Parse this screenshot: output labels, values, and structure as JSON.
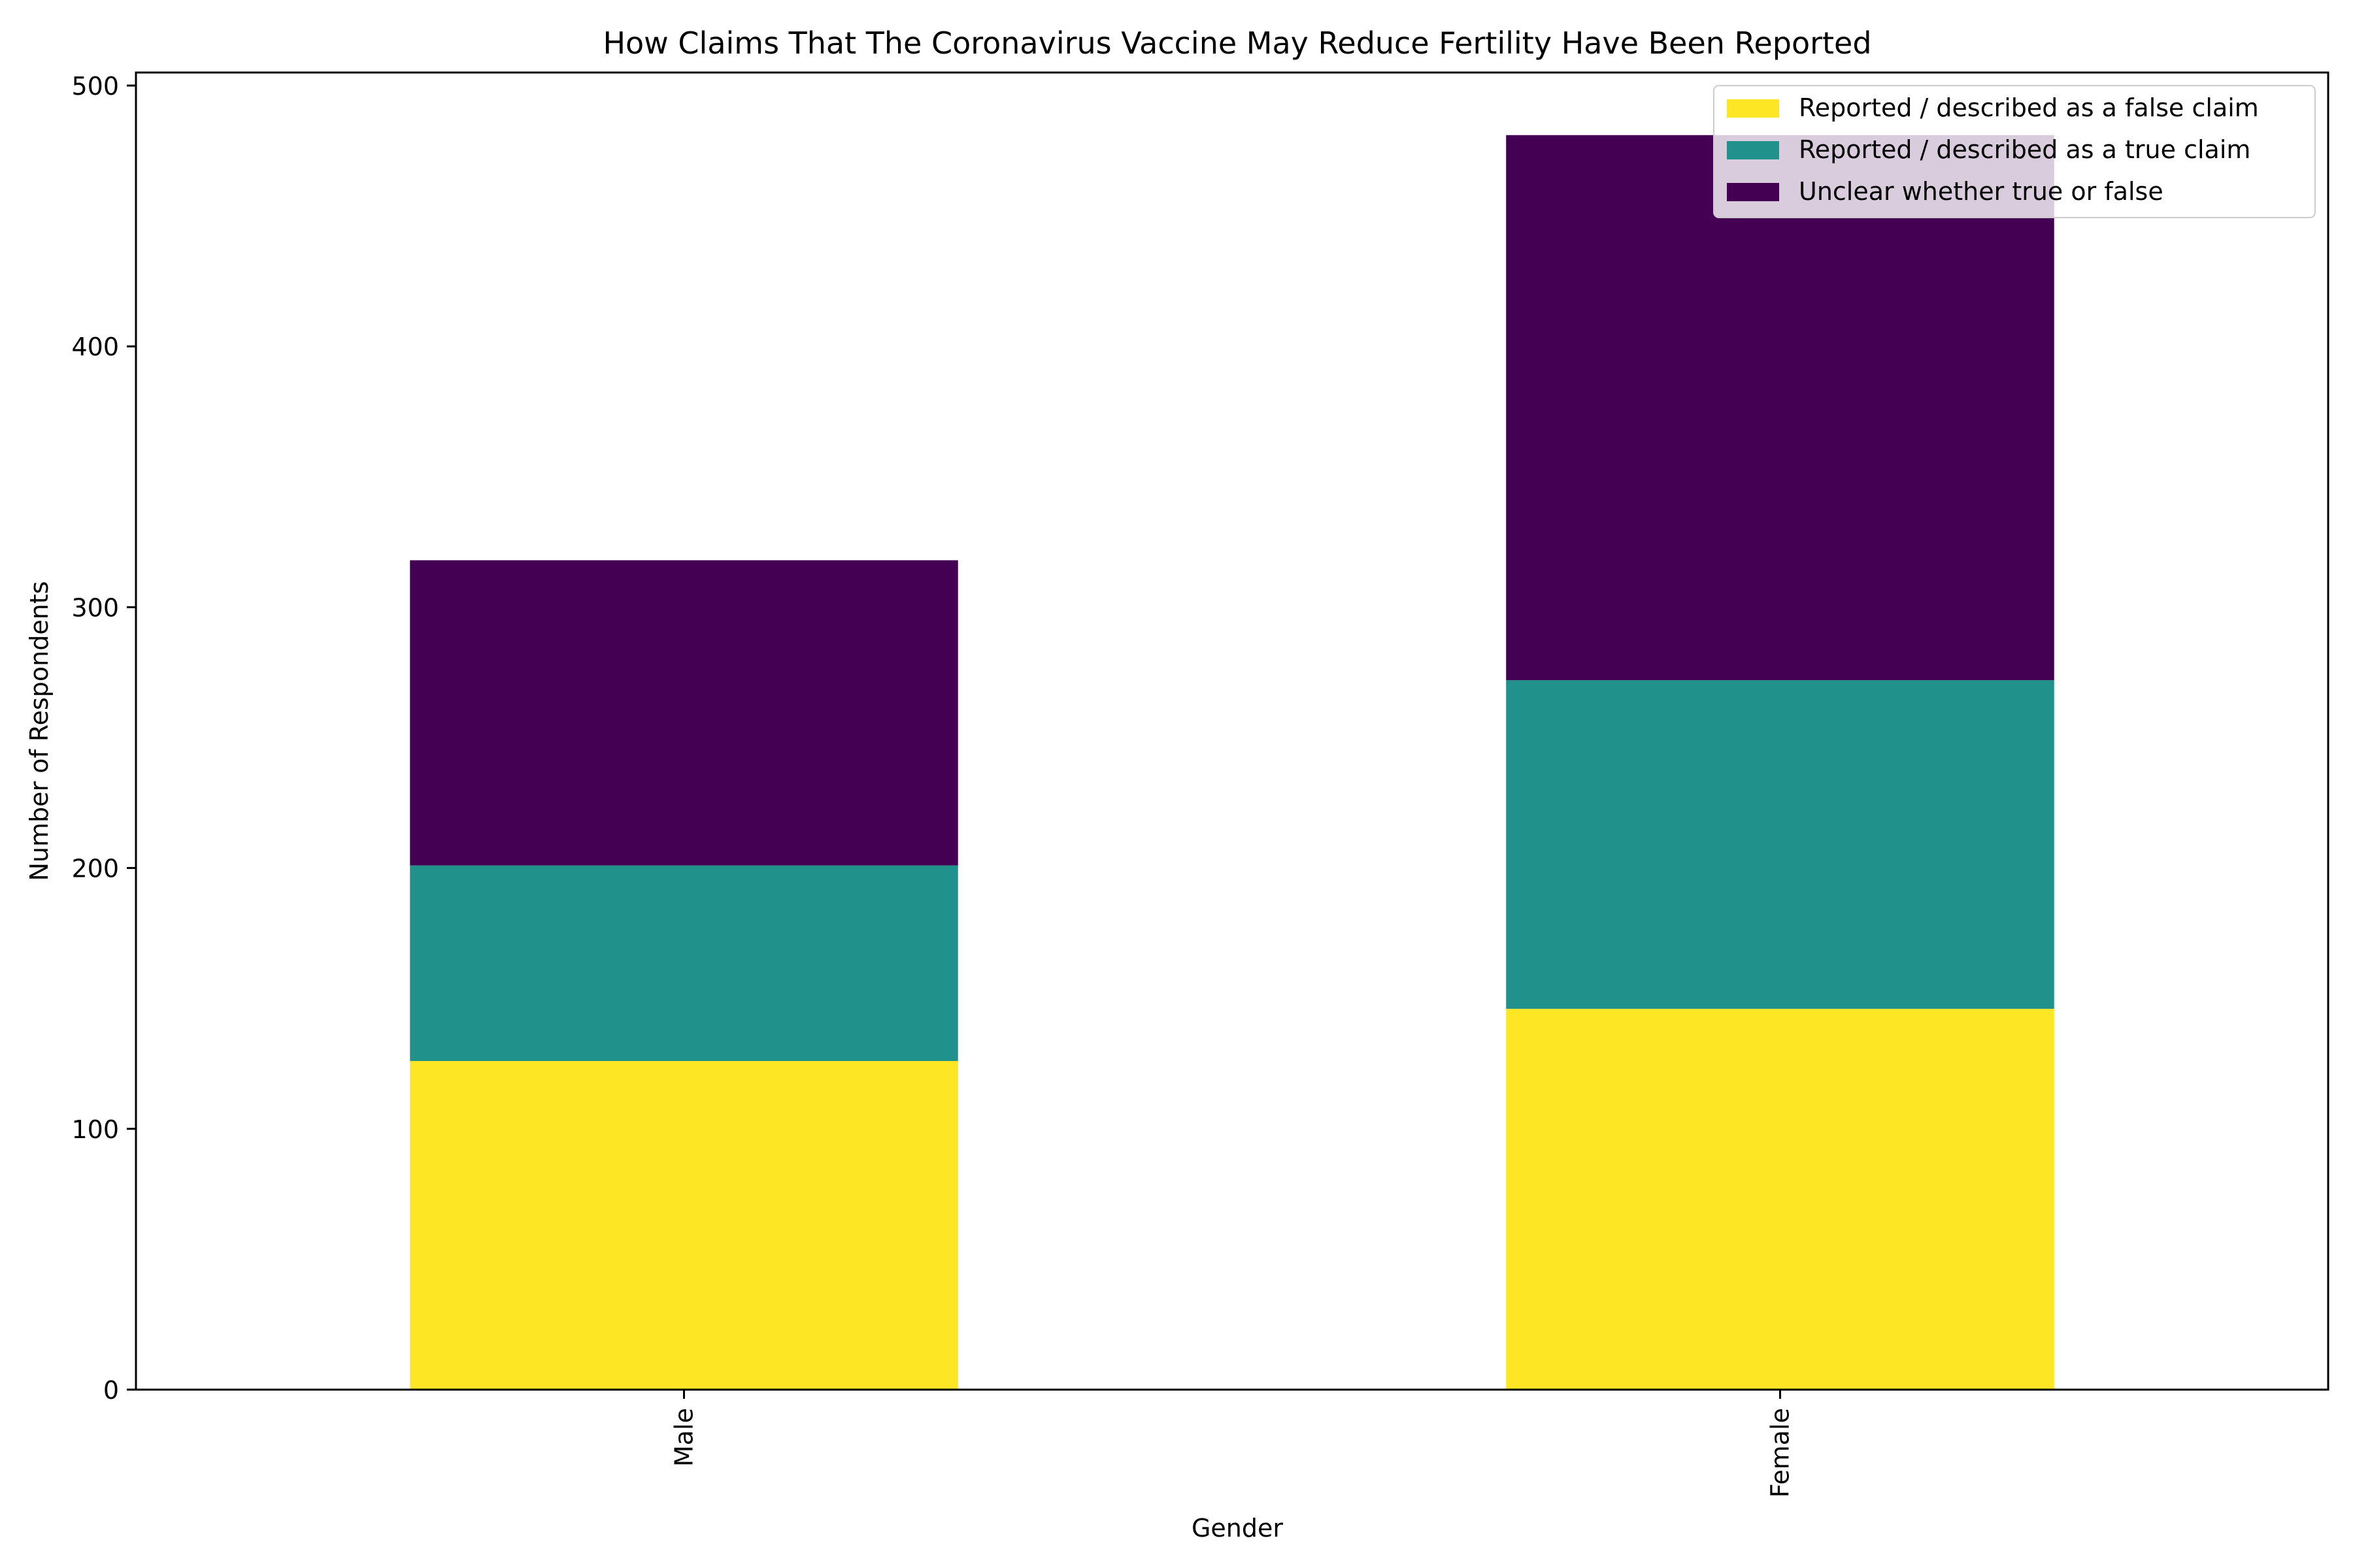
{
  "chart_data": {
    "type": "bar",
    "stacked": true,
    "title": "How Claims That The Coronavirus Vaccine May Reduce Fertility Have Been Reported",
    "xlabel": "Gender",
    "ylabel": "Number of Respondents",
    "categories": [
      "Male",
      "Female"
    ],
    "series": [
      {
        "name": "Reported / described as a false claim",
        "color": "#fde725",
        "values": [
          126,
          146
        ]
      },
      {
        "name": "Reported / described as a true claim",
        "color": "#21918c",
        "values": [
          75,
          126
        ]
      },
      {
        "name": "Unclear whether true or false",
        "color": "#440154",
        "values": [
          117,
          209
        ]
      }
    ],
    "ylim": [
      0,
      505
    ],
    "yticks": [
      "0",
      "100",
      "200",
      "300",
      "400",
      "500"
    ],
    "grid": false,
    "legend_position": "top-right"
  }
}
